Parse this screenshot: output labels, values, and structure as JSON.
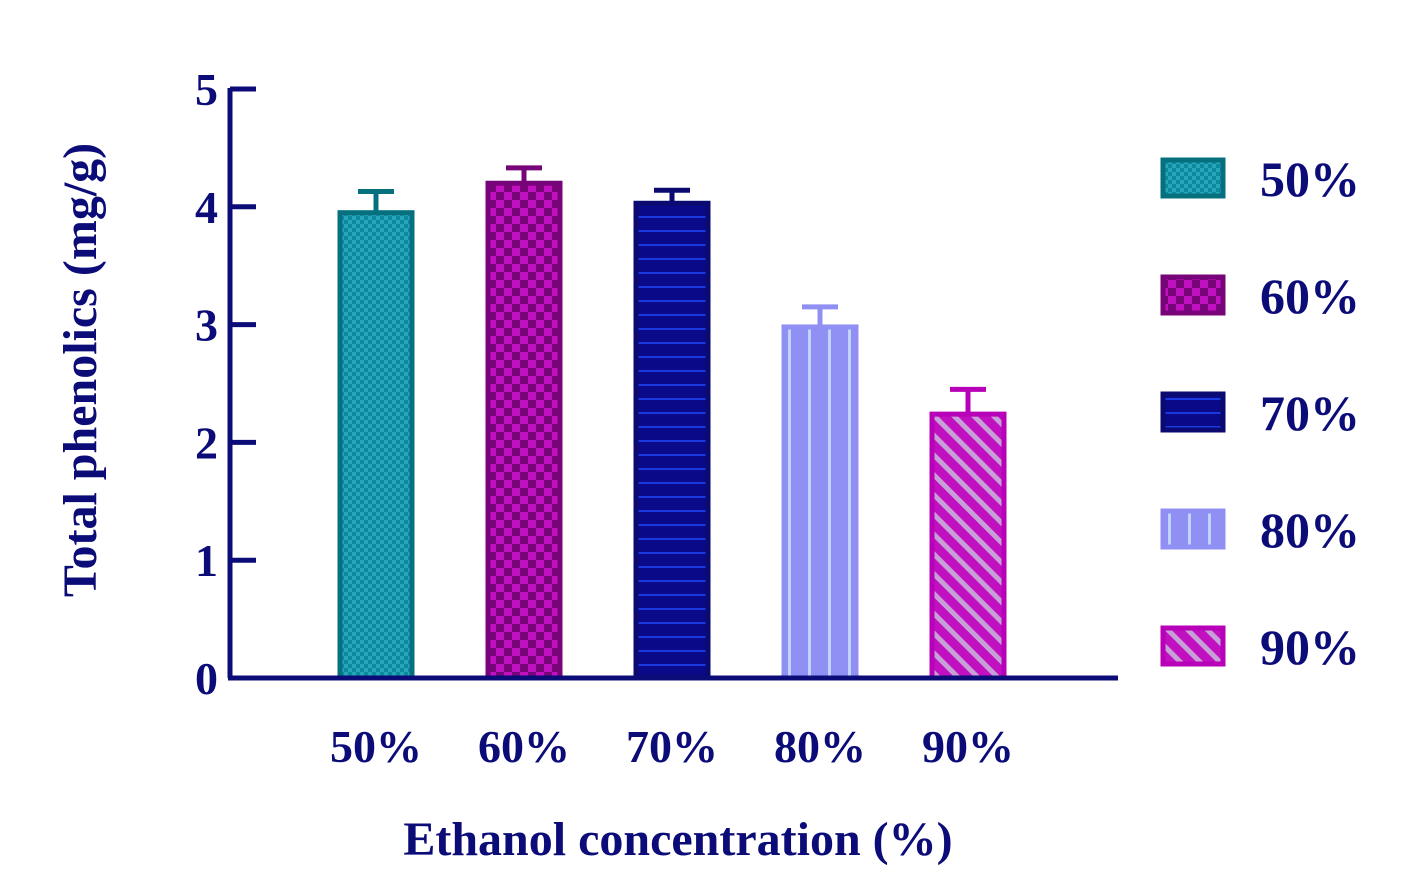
{
  "chart_data": {
    "type": "bar",
    "xlabel": "Ethanol concentration (%)",
    "ylabel": "Total phenolics (mg/g)",
    "ylim": [
      0,
      5
    ],
    "yticks": [
      "0",
      "1",
      "2",
      "3",
      "4",
      "5"
    ],
    "categories": [
      "50%",
      "60%",
      "70%",
      "80%",
      "90%"
    ],
    "values": [
      3.95,
      4.2,
      4.03,
      2.98,
      2.24
    ],
    "errors": [
      0.18,
      0.13,
      0.11,
      0.17,
      0.21
    ],
    "legend": {
      "placement": "right",
      "entries": [
        "50%",
        "60%",
        "70%",
        "80%",
        "90%"
      ]
    },
    "colors": {
      "axis": "#0c0c78",
      "text": "#0c0c78",
      "bars": [
        {
          "fill": "#0a8aa0",
          "pattern": "#3fb6c6",
          "stroke": "#06707f",
          "error": "#06707f"
        },
        {
          "fill": "#c010c0",
          "pattern": "#78047a",
          "stroke": "#78047a",
          "error": "#78047a"
        },
        {
          "fill": "#0a0a88",
          "pattern": "#1a3ae0",
          "stroke": "#0a0a70",
          "error": "#0a0a70"
        },
        {
          "fill": "#9090f4",
          "pattern": "#c0d4ff",
          "stroke": "#9090f4",
          "error": "#9090f4"
        },
        {
          "fill": "#c010c0",
          "pattern": "#c8a0d8",
          "stroke": "#b800b8",
          "error": "#b800b8"
        }
      ]
    },
    "grid": false
  }
}
